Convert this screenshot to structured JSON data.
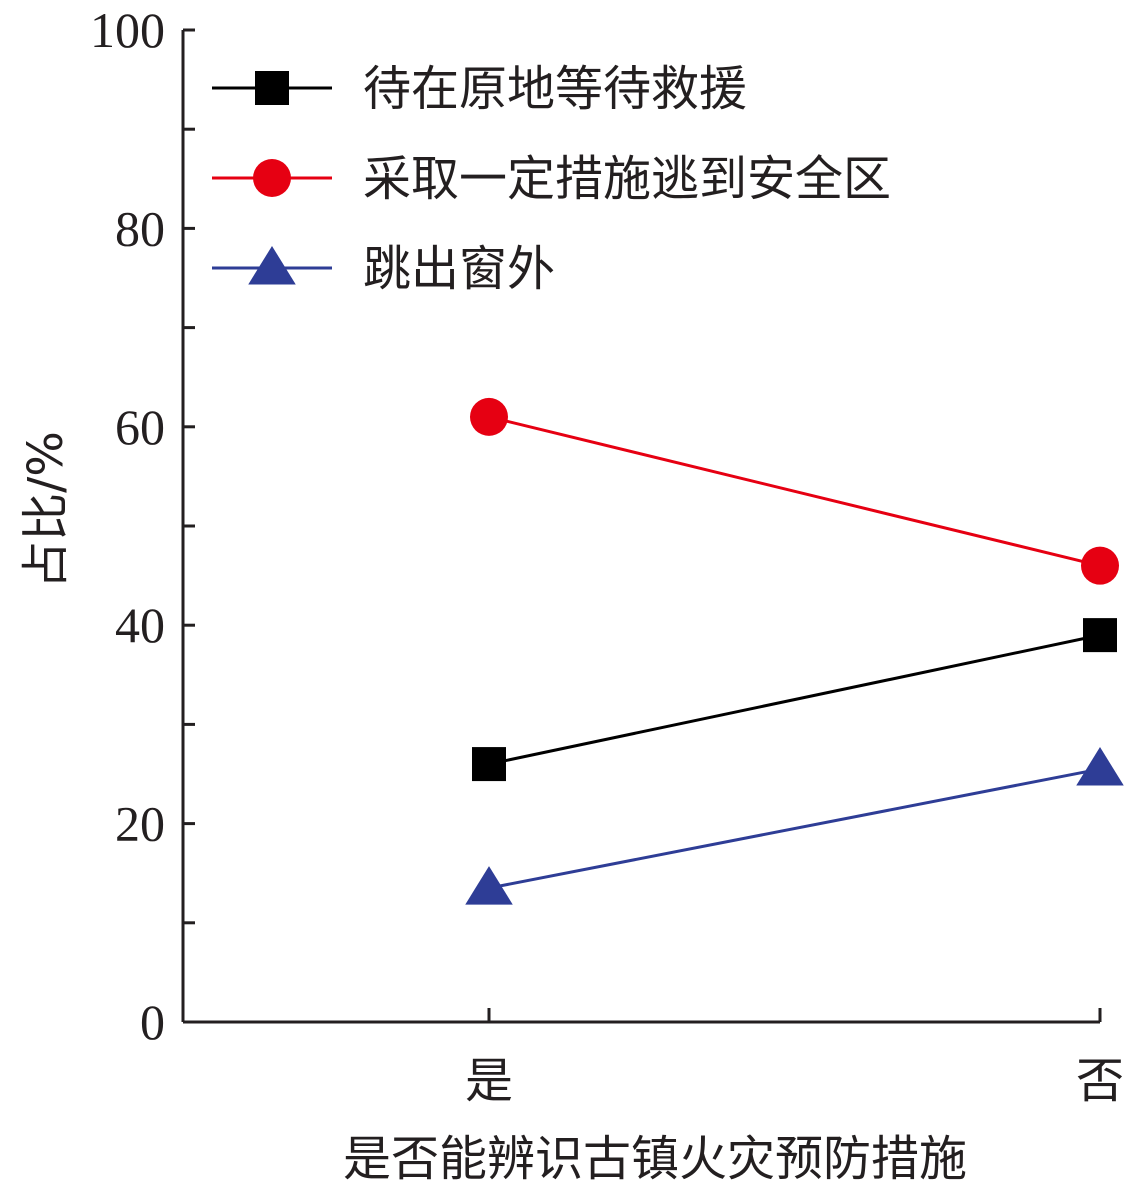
{
  "chart_data": {
    "type": "line",
    "categories": [
      "是",
      "否"
    ],
    "series": [
      {
        "name": "待在原地等待救援",
        "values": [
          26,
          39
        ],
        "color": "#000000",
        "marker": "square"
      },
      {
        "name": "采取一定措施逃到安全区",
        "values": [
          61,
          46
        ],
        "color": "#e60012",
        "marker": "circle"
      },
      {
        "name": "跳出窗外",
        "values": [
          13.5,
          25.5
        ],
        "color": "#2e3d96",
        "marker": "triangle"
      }
    ],
    "xlabel": "是否能辨识古镇火灾预防措施",
    "ylabel": "占比/%",
    "ylim": [
      0,
      100
    ],
    "yticks": [
      0,
      20,
      40,
      60,
      80,
      100
    ],
    "legend_position": "top-left",
    "grid": false
  }
}
